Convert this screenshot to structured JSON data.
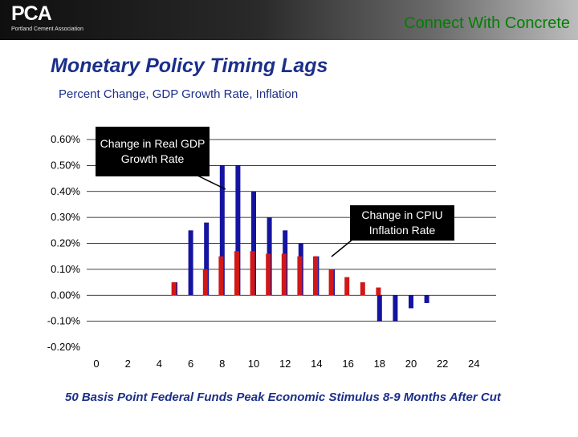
{
  "header": {
    "logo_mark": "PCA",
    "logo_subtitle": "Portland Cement Association",
    "tagline": "Connect With Concrete"
  },
  "slide": {
    "title": "Monetary Policy Timing Lags",
    "subtitle": "Percent Change, GDP Growth Rate, Inflation",
    "footer": "50 Basis Point Federal Funds Peak Economic Stimulus 8-9 Months After Cut"
  },
  "callouts": {
    "gdp": "Change in Real GDP Growth Rate",
    "cpi": "Change in CPIU Inflation Rate"
  },
  "colors": {
    "gdp_bars": "#1414a0",
    "cpi_bars": "#d01818",
    "tagline": "#008000",
    "title": "#1b2f8a"
  },
  "chart_data": {
    "type": "bar",
    "x": [
      5,
      6,
      7,
      8,
      9,
      10,
      11,
      12,
      13,
      14,
      15,
      16,
      17,
      18,
      19,
      20,
      21
    ],
    "series": [
      {
        "name": "Change in Real GDP Growth Rate",
        "values": [
          0.0005,
          0.0025,
          0.0028,
          0.005,
          0.005,
          0.004,
          0.003,
          0.0025,
          0.002,
          0.0015,
          0.001,
          0.0,
          0.0,
          -0.001,
          -0.001,
          -0.0005,
          -0.0003
        ]
      },
      {
        "name": "Change in CPIU Inflation Rate",
        "values": [
          0.0,
          0.0005,
          0.0,
          0.001,
          0.0015,
          0.0017,
          0.0017,
          0.0016,
          0.0016,
          0.0015,
          0.0015,
          0.001,
          0.0007,
          0.0005,
          0.0003,
          0.0,
          0.0
        ]
      }
    ],
    "xticks": [
      "0",
      "2",
      "4",
      "6",
      "8",
      "10",
      "12",
      "14",
      "16",
      "18",
      "20",
      "22",
      "24"
    ],
    "yticks": [
      "0.60%",
      "0.50%",
      "0.40%",
      "0.30%",
      "0.20%",
      "0.10%",
      "0.00%",
      "-0.10%",
      "-0.20%"
    ],
    "xlim": [
      0,
      25
    ],
    "ylim": [
      -0.002,
      0.006
    ],
    "grid": true
  }
}
